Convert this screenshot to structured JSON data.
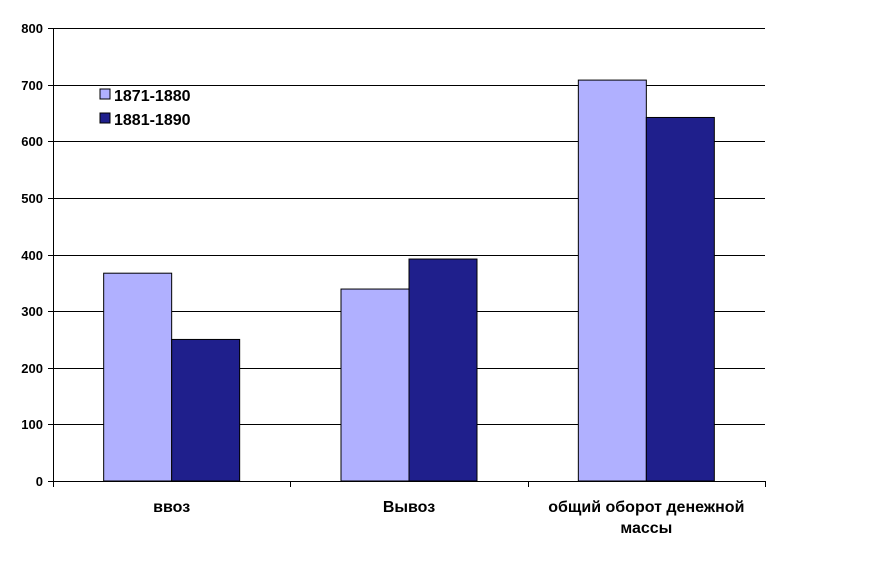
{
  "chart_data": {
    "type": "bar",
    "title": "",
    "xlabel": "",
    "ylabel": "",
    "categories": [
      [
        "ввоз"
      ],
      [
        "Вывоз"
      ],
      [
        "общий оборот денежной",
        "массы"
      ]
    ],
    "series": [
      {
        "name": "1871-1880",
        "color": "#b0b0ff",
        "values": [
          367,
          339,
          708
        ]
      },
      {
        "name": "1881-1890",
        "color": "#1f1f8c",
        "values": [
          250,
          392,
          642
        ]
      }
    ],
    "ylim": [
      0,
      800
    ],
    "yticks": [
      0,
      100,
      200,
      300,
      400,
      500,
      600,
      700,
      800
    ],
    "grid": true,
    "legend_position": "top-left"
  }
}
